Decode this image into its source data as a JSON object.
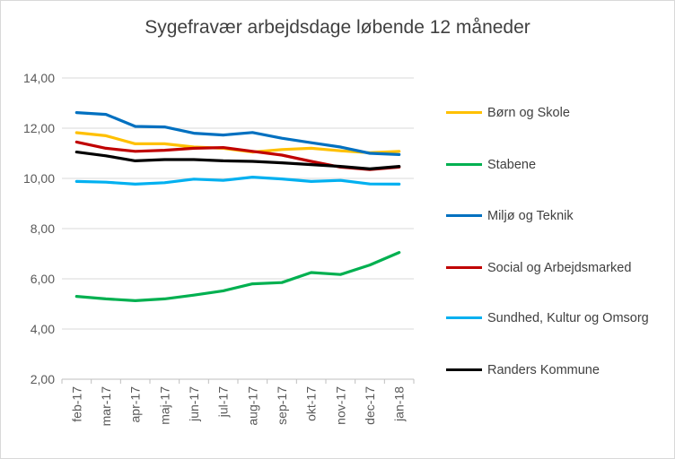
{
  "chart_data": {
    "type": "line",
    "title": "Sygefravær arbejdsdage løbende 12 måneder",
    "categories": [
      "feb-17",
      "mar-17",
      "apr-17",
      "maj-17",
      "jun-17",
      "jul-17",
      "aug-17",
      "sep-17",
      "okt-17",
      "nov-17",
      "dec-17",
      "jan-18"
    ],
    "ylim": [
      2,
      14
    ],
    "yticks": [
      "2,00",
      "4,00",
      "6,00",
      "8,00",
      "10,00",
      "12,00",
      "14,00"
    ],
    "grid": true,
    "legend_position": "right",
    "series": [
      {
        "name": "Børn og Skole",
        "color": "#FFC000",
        "values": [
          11.82,
          11.7,
          11.38,
          11.38,
          11.25,
          11.2,
          11.05,
          11.15,
          11.2,
          11.1,
          11.02,
          11.08
        ]
      },
      {
        "name": "Stabene",
        "color": "#00B050",
        "values": [
          5.3,
          5.2,
          5.13,
          5.2,
          5.35,
          5.52,
          5.8,
          5.85,
          6.25,
          6.17,
          6.55,
          7.05
        ]
      },
      {
        "name": "Miljø og Teknik",
        "color": "#0070C0",
        "values": [
          12.62,
          12.55,
          12.07,
          12.05,
          11.8,
          11.73,
          11.83,
          11.6,
          11.42,
          11.25,
          11.0,
          10.95
        ]
      },
      {
        "name": "Social og Arbejdsmarked",
        "color": "#C00000",
        "values": [
          11.45,
          11.2,
          11.08,
          11.12,
          11.2,
          11.23,
          11.08,
          10.93,
          10.68,
          10.45,
          10.35,
          10.45
        ]
      },
      {
        "name": "Sundhed, Kultur og Omsorg",
        "color": "#00B0F0",
        "values": [
          9.88,
          9.85,
          9.77,
          9.83,
          9.97,
          9.92,
          10.05,
          9.98,
          9.88,
          9.92,
          9.78,
          9.77
        ]
      },
      {
        "name": "Randers Kommune",
        "color": "#000000",
        "values": [
          11.05,
          10.9,
          10.7,
          10.75,
          10.75,
          10.7,
          10.68,
          10.62,
          10.55,
          10.48,
          10.38,
          10.48
        ]
      }
    ]
  }
}
